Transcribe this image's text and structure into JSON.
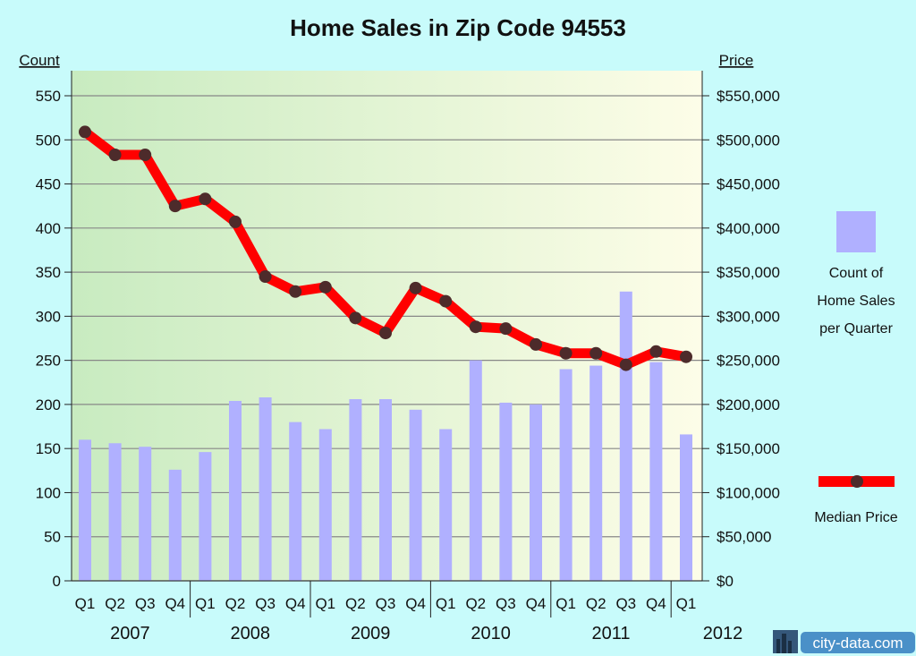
{
  "chart_data": {
    "type": "bar+line",
    "title": "Home Sales in Zip Code 94553",
    "left_axis_label": "Count",
    "right_axis_label": "Price",
    "left_ticks": [
      "0",
      "50",
      "100",
      "150",
      "200",
      "250",
      "300",
      "350",
      "400",
      "450",
      "500",
      "550"
    ],
    "right_ticks": [
      "$0",
      "$50,000",
      "$100,000",
      "$150,000",
      "$200,000",
      "$250,000",
      "$300,000",
      "$350,000",
      "$400,000",
      "$450,000",
      "$500,000",
      "$550,000"
    ],
    "ylim_count": [
      0,
      550
    ],
    "ylim_price": [
      0,
      550000
    ],
    "grid": true,
    "quarters": [
      "Q1",
      "Q2",
      "Q3",
      "Q4",
      "Q1",
      "Q2",
      "Q3",
      "Q4",
      "Q1",
      "Q2",
      "Q3",
      "Q4",
      "Q1",
      "Q2",
      "Q3",
      "Q4",
      "Q1",
      "Q2",
      "Q3",
      "Q4",
      "Q1"
    ],
    "years": [
      "2007",
      "2008",
      "2009",
      "2010",
      "2011",
      "2012"
    ],
    "series": [
      {
        "name": "Count of Home Sales per Quarter",
        "type": "bar",
        "color": "#b0b0ff",
        "values": [
          160,
          156,
          152,
          126,
          146,
          204,
          208,
          180,
          172,
          206,
          206,
          194,
          172,
          250,
          202,
          200,
          240,
          244,
          328,
          248,
          166
        ]
      },
      {
        "name": "Median Price",
        "type": "line",
        "color": "#ff0000",
        "marker_color": "#4d2b2b",
        "values": [
          509000,
          483000,
          483000,
          425000,
          433000,
          407000,
          345000,
          328000,
          333000,
          298000,
          281000,
          332000,
          317000,
          288000,
          286000,
          268000,
          258000,
          258000,
          245000,
          260000,
          254000
        ]
      }
    ]
  },
  "legend": {
    "bar_label_lines": [
      "Count of",
      "Home Sales",
      "per Quarter"
    ],
    "line_label": "Median Price"
  },
  "watermark": "city-data.com",
  "colors": {
    "background": "#c8fbfb",
    "plot_gradient_left": "#c8ebc0",
    "plot_gradient_right": "#fdfde8",
    "bar": "#b0b0ff",
    "line": "#ff0000",
    "marker": "#4d2b2b"
  }
}
